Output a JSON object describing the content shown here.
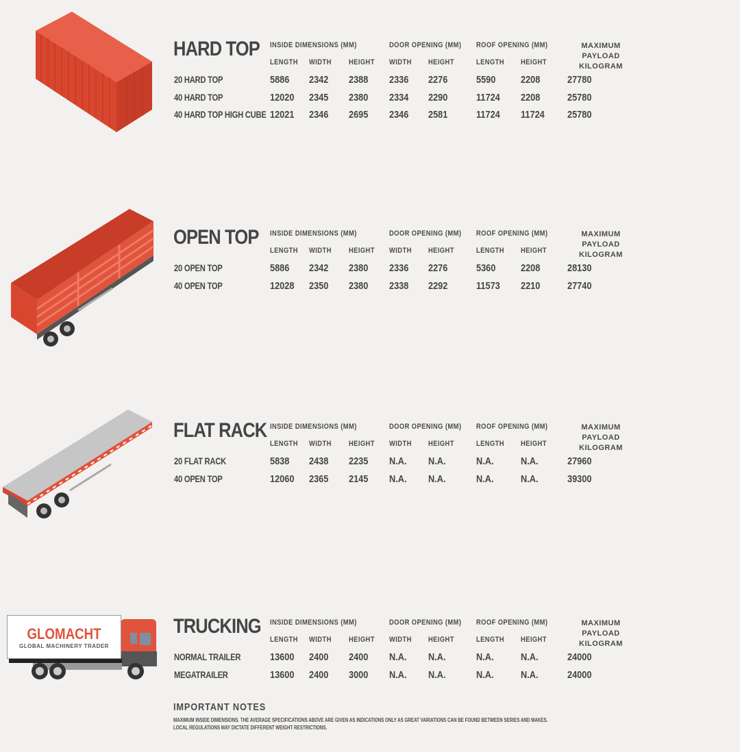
{
  "columns": {
    "inside": "INSIDE DIMENSIONS (MM)",
    "door": "DOOR OPENING (MM)",
    "roof": "ROOF OPENING (MM)",
    "payload_line1": "MAXIMUM PAYLOAD",
    "payload_line2": "KILOGRAM",
    "sub": [
      "LENGTH",
      "WIDTH",
      "HEIGHT",
      "WIDTH",
      "HEIGHT",
      "LENGTH",
      "HEIGHT"
    ]
  },
  "sections": [
    {
      "title": "HARD TOP",
      "image": "red-container-icon",
      "rows": [
        [
          "20 HARD TOP",
          "5886",
          "2342",
          "2388",
          "2336",
          "2276",
          "5590",
          "2208",
          "27780"
        ],
        [
          "40 HARD TOP",
          "12020",
          "2345",
          "2380",
          "2334",
          "2290",
          "11724",
          "2208",
          "25780"
        ],
        [
          "40 HARD TOP HIGH CUBE",
          "12021",
          "2346",
          "2695",
          "2346",
          "2581",
          "11724",
          "11724",
          "25780"
        ]
      ]
    },
    {
      "title": "OPEN TOP",
      "image": "open-top-trailer-icon",
      "rows": [
        [
          "20 OPEN TOP",
          "5886",
          "2342",
          "2380",
          "2336",
          "2276",
          "5360",
          "2208",
          "28130"
        ],
        [
          "40 OPEN TOP",
          "12028",
          "2350",
          "2380",
          "2338",
          "2292",
          "11573",
          "2210",
          "27740"
        ]
      ]
    },
    {
      "title": "FLAT RACK",
      "image": "flat-rack-trailer-icon",
      "rows": [
        [
          "20 FLAT RACK",
          "5838",
          "2438",
          "2235",
          "N.A.",
          "N.A.",
          "N.A.",
          "N.A.",
          "27960"
        ],
        [
          "40 OPEN TOP",
          "12060",
          "2365",
          "2145",
          "N.A.",
          "N.A.",
          "N.A.",
          "N.A.",
          "39300"
        ]
      ]
    },
    {
      "title": "TRUCKING",
      "image": "truck-icon",
      "rows": [
        [
          "NORMAL TRAILER",
          "13600",
          "2400",
          "2400",
          "N.A.",
          "N.A.",
          "N.A.",
          "N.A.",
          "24000"
        ],
        [
          "MEGATRAILER",
          "13600",
          "2400",
          "3000",
          "N.A.",
          "N.A.",
          "N.A.",
          "N.A.",
          "24000"
        ]
      ]
    }
  ],
  "truck_logo": {
    "brand": "GLOMACHT",
    "tagline": "GLOBAL MACHINERY TRADER"
  },
  "notes": {
    "title": "IMPORTANT NOTES",
    "lines": [
      "MAXIMUM INSIDE DIMENSIONS. THE AVERAGE SPECIFICATIONS ABOVE ARE GIVEN AS INDICATIONS ONLY AS GREAT VARIATIONS CAN BE FOUND BETWEEN SERIES AND MAKES.",
      "LOCAL REGULATIONS MAY DICTATE DIFFERENT WEIGHT RESTRICTIONS."
    ]
  },
  "colors": {
    "accent": "#e0533c",
    "text": "#454545",
    "background": "#f2f1ef"
  }
}
